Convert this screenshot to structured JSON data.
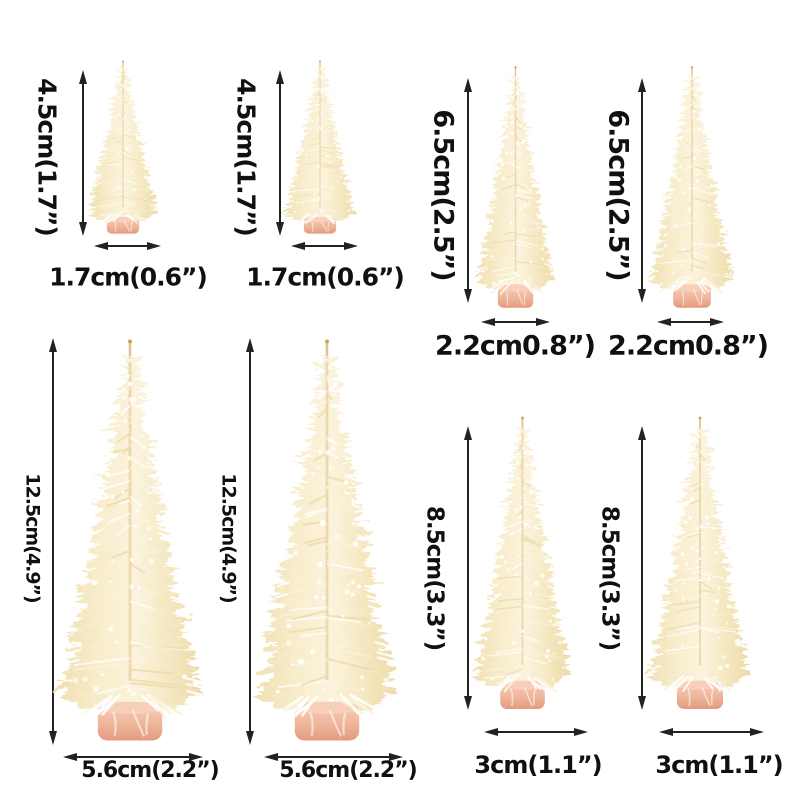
{
  "image_title": "mini sisal bottle brush christmas trees size chart",
  "colors": {
    "background": "#ffffff",
    "text": "#101010",
    "arrow": "#222222",
    "tree_cream": "#F6E8C3",
    "tree_light": "#FBF3DC",
    "tree_shade": "#EDD9A8",
    "tree_spine": "#E2C28C",
    "snow": "#FFFFFF",
    "base_pink_light": "#F7CFBA",
    "base_pink": "#E8A487"
  },
  "groups": [
    {
      "name": "small-tree-1",
      "height_label": "4.5cm(1.7”)",
      "width_label": "1.7cm(0.6”)"
    },
    {
      "name": "small-tree-2",
      "height_label": "4.5cm(1.7”)",
      "width_label": "1.7cm(0.6”)"
    },
    {
      "name": "medium-tree-1",
      "height_label": "6.5cm(2.5”)",
      "width_label": "2.2cm0.8”)"
    },
    {
      "name": "medium-tree-2",
      "height_label": "6.5cm(2.5”)",
      "width_label": "2.2cm0.8”)"
    },
    {
      "name": "large-tree-1",
      "height_label": "12.5cm(4.9”)",
      "width_label": "5.6cm(2.2”)"
    },
    {
      "name": "large-tree-2",
      "height_label": "12.5cm(4.9”)",
      "width_label": "5.6cm(2.2”)"
    },
    {
      "name": "tall-tree-1",
      "height_label": "8.5cm(3.3”)",
      "width_label": "3cm(1.1”)"
    },
    {
      "name": "tall-tree-2",
      "height_label": "8.5cm(3.3”)",
      "width_label": "3cm(1.1”)"
    }
  ]
}
